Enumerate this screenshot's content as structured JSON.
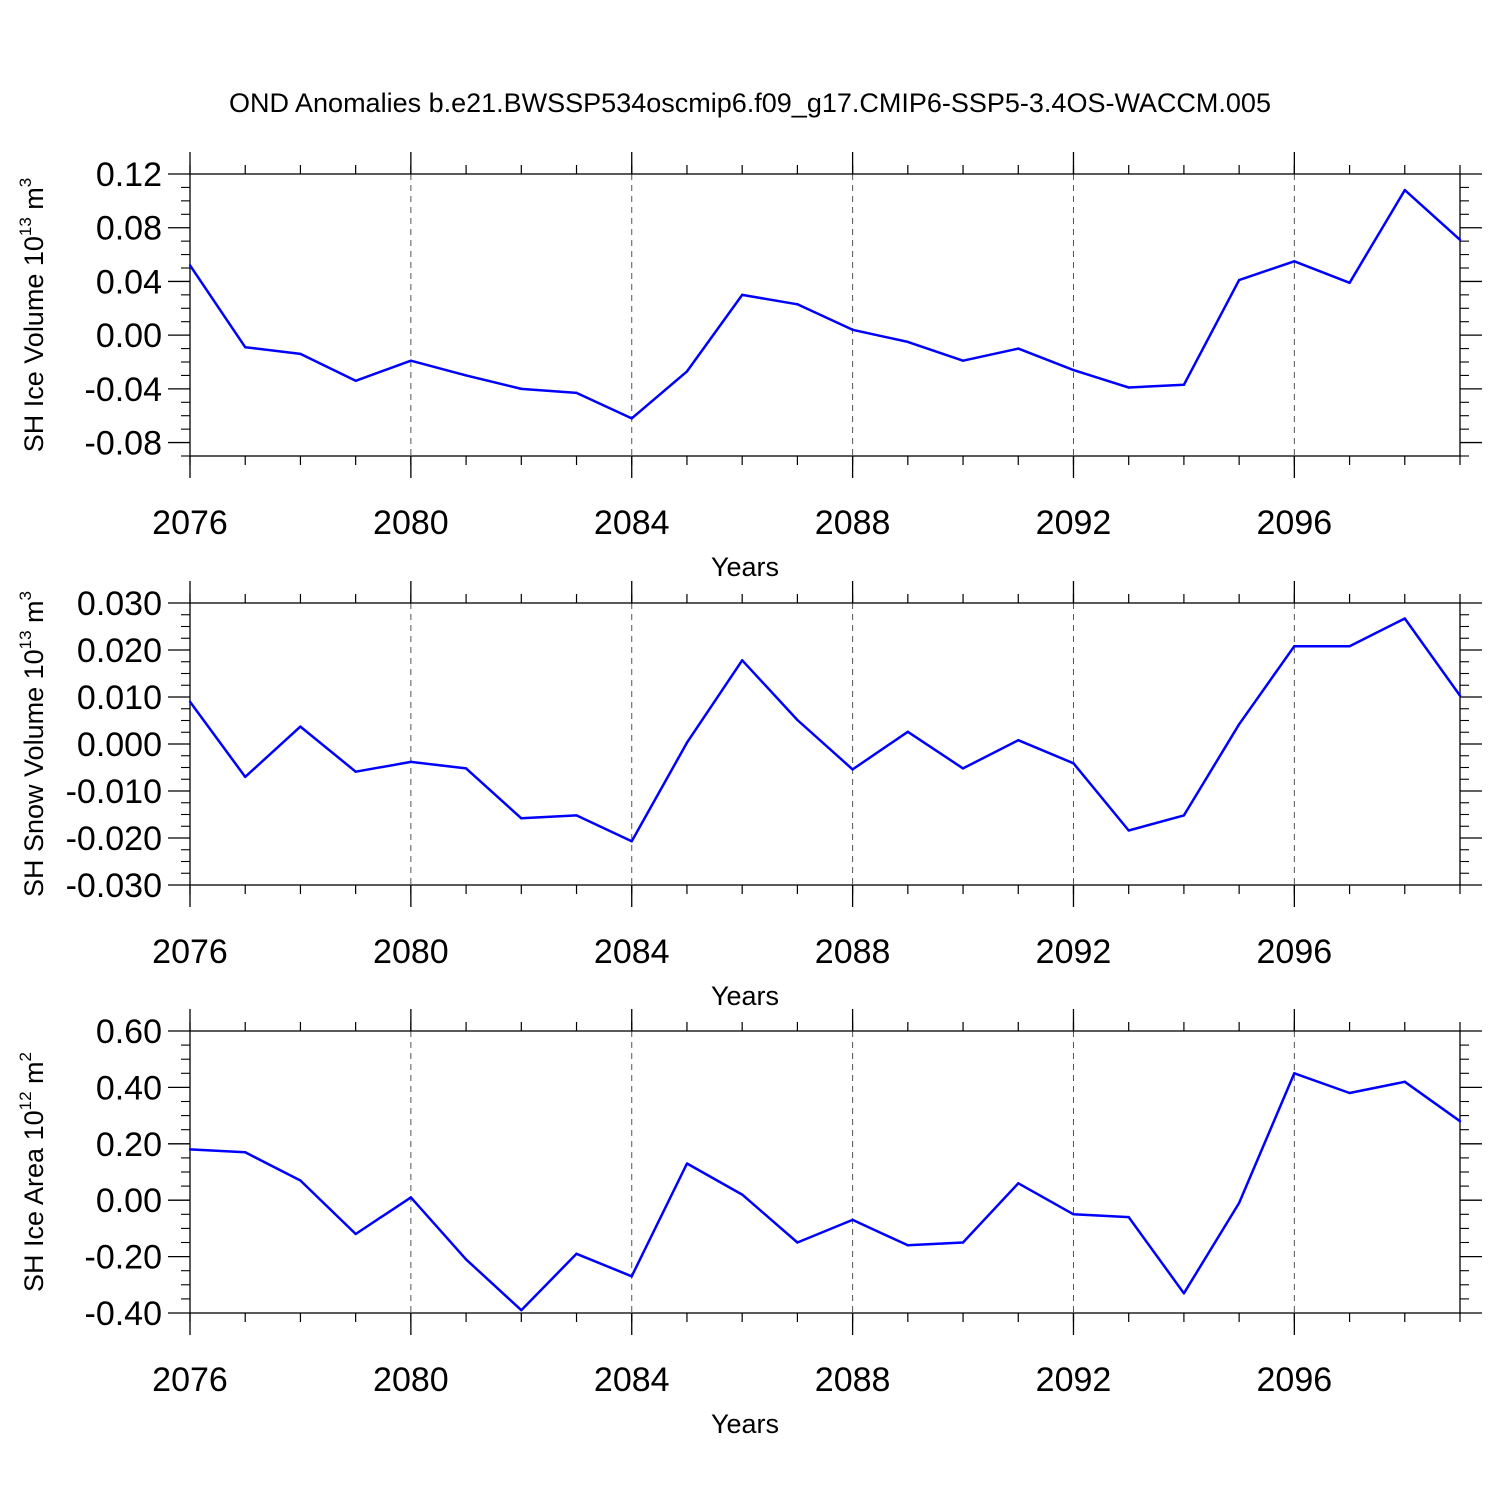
{
  "title": "OND Anomalies b.e21.BWSSP534oscmip6.f09_g17.CMIP6-SSP5-3.4OS-WACCM.005",
  "line_color": "#0000ff",
  "chart_data": [
    {
      "type": "line",
      "ylabel_main": "SH Ice Volume 10",
      "ylabel_exp": "13",
      "ylabel_unit": " m",
      "ylabel_unit_exp": "3",
      "xlabel": "Years",
      "xlim": [
        2076,
        2099
      ],
      "ylim": [
        -0.09,
        0.12
      ],
      "yticks": [
        0.12,
        0.08,
        0.04,
        0.0,
        -0.04,
        -0.08
      ],
      "ytick_labels": [
        "0.12",
        "0.08",
        "0.04",
        "0.00",
        "-0.04",
        "-0.08"
      ],
      "xticks": [
        2076,
        2080,
        2084,
        2088,
        2092,
        2096
      ],
      "xtick_labels": [
        "2076",
        "2080",
        "2084",
        "2088",
        "2092",
        "2096"
      ],
      "grid_x": [
        2080,
        2084,
        2088,
        2092,
        2096
      ],
      "x": [
        2076,
        2077,
        2078,
        2079,
        2080,
        2081,
        2082,
        2083,
        2084,
        2085,
        2086,
        2087,
        2088,
        2089,
        2090,
        2091,
        2092,
        2093,
        2094,
        2095,
        2096,
        2097,
        2098,
        2099
      ],
      "values": [
        0.052,
        -0.009,
        -0.014,
        -0.034,
        -0.019,
        -0.03,
        -0.04,
        -0.043,
        -0.062,
        -0.027,
        0.03,
        0.023,
        0.004,
        -0.005,
        -0.019,
        -0.01,
        -0.026,
        -0.039,
        -0.037,
        0.041,
        0.055,
        0.039,
        0.108,
        0.071
      ]
    },
    {
      "type": "line",
      "ylabel_main": "SH Snow Volume 10",
      "ylabel_exp": "13",
      "ylabel_unit": " m",
      "ylabel_unit_exp": "3",
      "xlabel": "Years",
      "xlim": [
        2076,
        2099
      ],
      "ylim": [
        -0.03,
        0.03
      ],
      "yticks": [
        0.03,
        0.02,
        0.01,
        0.0,
        -0.01,
        -0.02,
        -0.03
      ],
      "ytick_labels": [
        "0.030",
        "0.020",
        "0.010",
        "0.000",
        "-0.010",
        "-0.020",
        "-0.030"
      ],
      "xticks": [
        2076,
        2080,
        2084,
        2088,
        2092,
        2096
      ],
      "xtick_labels": [
        "2076",
        "2080",
        "2084",
        "2088",
        "2092",
        "2096"
      ],
      "grid_x": [
        2080,
        2084,
        2088,
        2092,
        2096
      ],
      "x": [
        2076,
        2077,
        2078,
        2079,
        2080,
        2081,
        2082,
        2083,
        2084,
        2085,
        2086,
        2087,
        2088,
        2089,
        2090,
        2091,
        2092,
        2093,
        2094,
        2095,
        2096,
        2097,
        2098,
        2099
      ],
      "values": [
        0.009,
        -0.007,
        0.0037,
        -0.0059,
        -0.0038,
        -0.0052,
        -0.0158,
        -0.0152,
        -0.0207,
        0.0003,
        0.0178,
        0.0051,
        -0.0054,
        0.0026,
        -0.0052,
        0.0008,
        -0.0041,
        -0.0184,
        -0.0152,
        0.0042,
        0.0208,
        0.0208,
        0.0267,
        0.0103
      ]
    },
    {
      "type": "line",
      "ylabel_main": "SH Ice Area 10",
      "ylabel_exp": "12",
      "ylabel_unit": " m",
      "ylabel_unit_exp": "2",
      "xlabel": "Years",
      "xlim": [
        2076,
        2099
      ],
      "ylim": [
        -0.4,
        0.6
      ],
      "yticks": [
        0.6,
        0.4,
        0.2,
        0.0,
        -0.2,
        -0.4
      ],
      "ytick_labels": [
        "0.60",
        "0.40",
        "0.20",
        "0.00",
        "-0.20",
        "-0.40"
      ],
      "xticks": [
        2076,
        2080,
        2084,
        2088,
        2092,
        2096
      ],
      "xtick_labels": [
        "2076",
        "2080",
        "2084",
        "2088",
        "2092",
        "2096"
      ],
      "grid_x": [
        2080,
        2084,
        2088,
        2092,
        2096
      ],
      "x": [
        2076,
        2077,
        2078,
        2079,
        2080,
        2081,
        2082,
        2083,
        2084,
        2085,
        2086,
        2087,
        2088,
        2089,
        2090,
        2091,
        2092,
        2093,
        2094,
        2095,
        2096,
        2097,
        2098,
        2099
      ],
      "values": [
        0.18,
        0.17,
        0.07,
        -0.12,
        0.01,
        -0.21,
        -0.39,
        -0.19,
        -0.27,
        0.13,
        0.02,
        -0.15,
        -0.07,
        -0.16,
        -0.15,
        0.06,
        -0.05,
        -0.06,
        -0.33,
        -0.01,
        0.45,
        0.38,
        0.42,
        0.28
      ]
    }
  ]
}
